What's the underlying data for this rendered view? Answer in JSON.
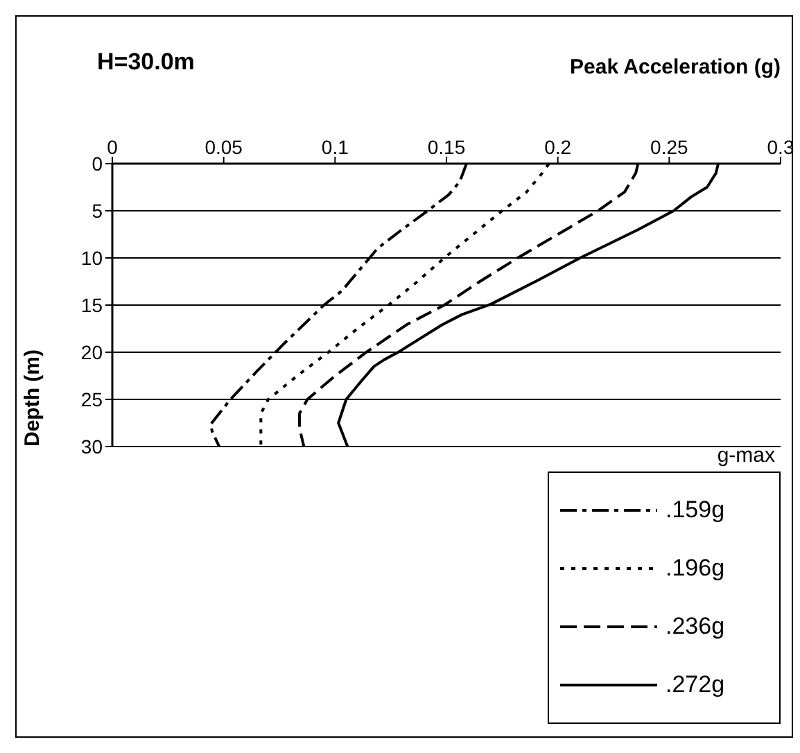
{
  "chart_data": {
    "type": "line",
    "title": "H=30.0m",
    "xlabel": "Peak Acceleration (g)",
    "ylabel": "Depth (m)",
    "legend_title": "g-max",
    "legend": "bottom right",
    "grid": "y",
    "marker": "none",
    "xlim": [
      0,
      0.3
    ],
    "xticks": [
      0,
      0.05,
      0.1,
      0.15,
      0.2,
      0.25,
      0.3
    ],
    "ylim": [
      30,
      0
    ],
    "yticks": [
      0,
      5,
      10,
      15,
      20,
      25,
      30
    ],
    "series": [
      {
        "name": ".159g",
        "color": "#000000",
        "line_style": "dashdot",
        "x": [
          0.159,
          0.156,
          0.151,
          0.141,
          0.13,
          0.119,
          0.1155,
          0.103,
          0.095,
          0.0766,
          0.065,
          0.053,
          0.044,
          0.045,
          0.048
        ],
        "values": [
          0,
          1.9,
          3.3,
          5.1,
          7,
          9,
          10,
          13.5,
          15,
          19.2,
          22,
          25,
          27.7,
          28.5,
          30
        ]
      },
      {
        "name": ".196g",
        "color": "#000000",
        "line_style": "dotted",
        "x": [
          0.196,
          0.193,
          0.186,
          0.175,
          0.162,
          0.149,
          0.137,
          0.124,
          0.11,
          0.097,
          0.083,
          0.07,
          0.0667,
          0.0667
        ],
        "values": [
          0,
          1,
          3,
          5,
          7.5,
          10,
          12.5,
          15,
          17.5,
          20,
          22.5,
          25,
          26.5,
          30
        ]
      },
      {
        "name": ".236g",
        "color": "#000000",
        "line_style": "dashed",
        "x": [
          0.236,
          0.235,
          0.23,
          0.218,
          0.2,
          0.182,
          0.165,
          0.149,
          0.132,
          0.114,
          0.1,
          0.0876,
          0.084,
          0.084,
          0.086
        ],
        "values": [
          0,
          1,
          3,
          5,
          7.5,
          10,
          12.5,
          15,
          17.1,
          20,
          22.5,
          25,
          26.5,
          28,
          30
        ]
      },
      {
        "name": ".272g",
        "color": "#000000",
        "line_style": "solid",
        "x": [
          0.272,
          0.271,
          0.267,
          0.26,
          0.252,
          0.236,
          0.21,
          0.19,
          0.17,
          0.157,
          0.148,
          0.129,
          0.122,
          0.1175,
          0.112,
          0.105,
          0.1015,
          0.1056
        ],
        "values": [
          0,
          1,
          2.5,
          3.5,
          5,
          7,
          10,
          12.5,
          14.9,
          16,
          17.1,
          19.9,
          20.8,
          21.5,
          23,
          25,
          27.5,
          30
        ]
      }
    ]
  }
}
